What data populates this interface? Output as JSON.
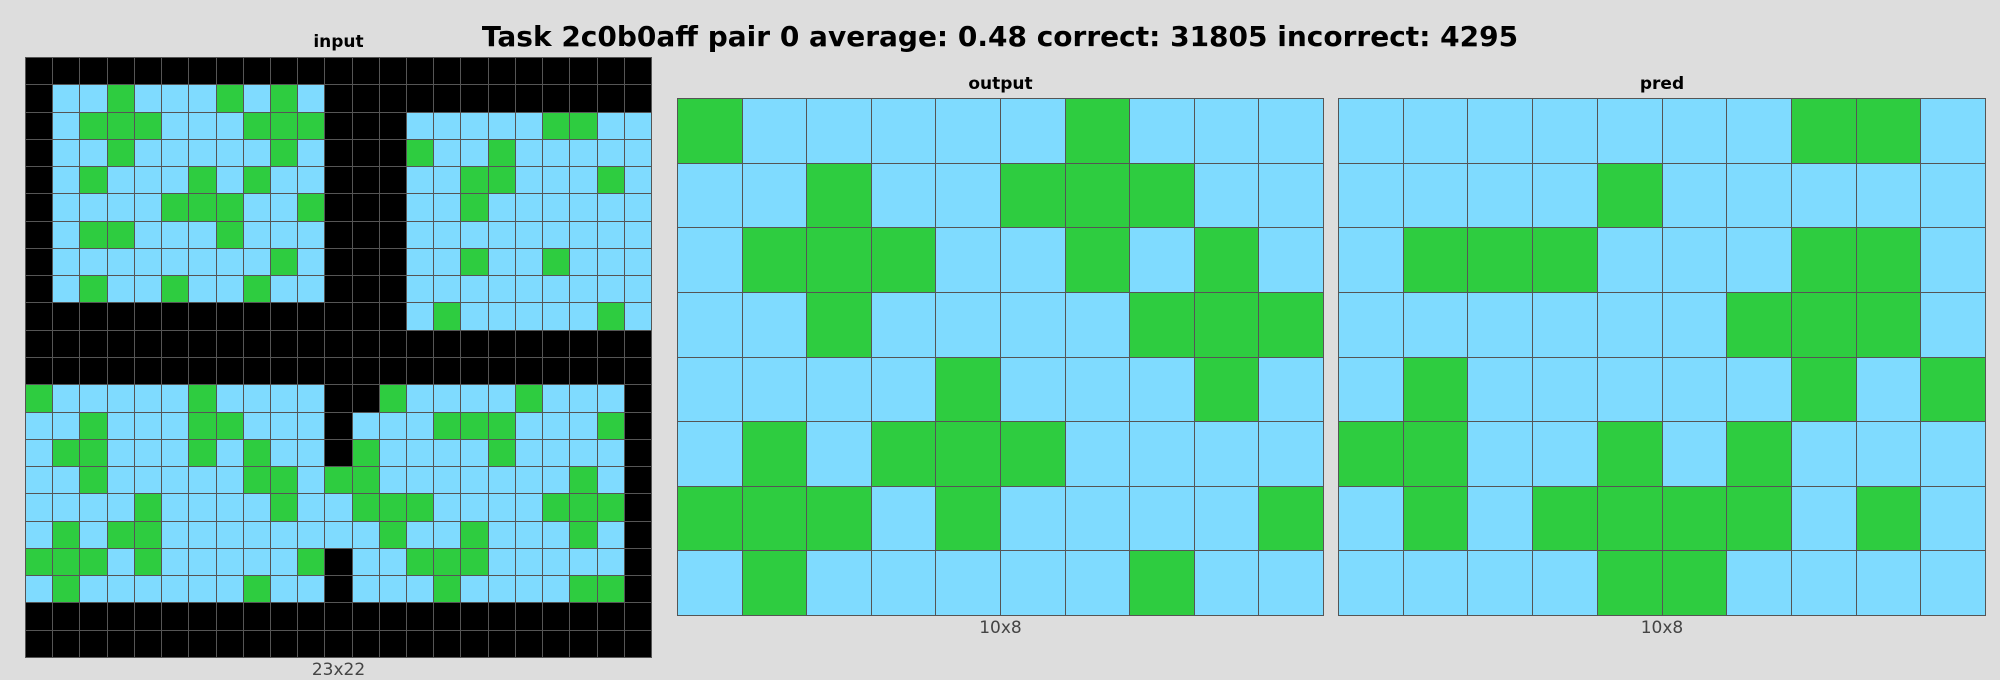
{
  "title": "Task 2c0b0aff pair 0 average: 0.48 correct: 31805 incorrect: 4295",
  "palette": {
    "0": "#000000",
    "3": "#2ecc40",
    "8": "#7fdbff"
  },
  "panels": {
    "input": {
      "title": "input",
      "caption": "23x22",
      "rows": [
        "00000000000000000000000",
        "08838883838000000000000",
        "08333888333000888883388",
        "08838888838000388388888",
        "08388838388000883388838",
        "08888333883000883888888",
        "08338883888000888888888",
        "08888888838000883883888",
        "08388388388000888888888",
        "00000000000000838888838",
        "00000000000000000000000",
        "00000000000000000000000",
        "38888838888003888838880",
        "88388833888088833388830",
        "83388838388038888388880",
        "88388888338338888888380",
        "88883888838833388883330",
        "83833888888883883888380",
        "33383888883088333888880",
        "83888888388088838888330",
        "00000000000000000000000",
        "00000000000000000000000"
      ]
    },
    "output": {
      "title": "output",
      "caption": "10x8",
      "rows": [
        "3888883888",
        "8838833388",
        "8333883838",
        "8838888333",
        "8888388838",
        "8383338888",
        "3338388883",
        "8388888388"
      ]
    },
    "pred": {
      "title": "pred",
      "caption": "10x8",
      "rows": [
        "8888888338",
        "8888388888",
        "8333888338",
        "8888883338",
        "8388888383",
        "3388383888",
        "8383333838",
        "8888338888"
      ]
    }
  }
}
